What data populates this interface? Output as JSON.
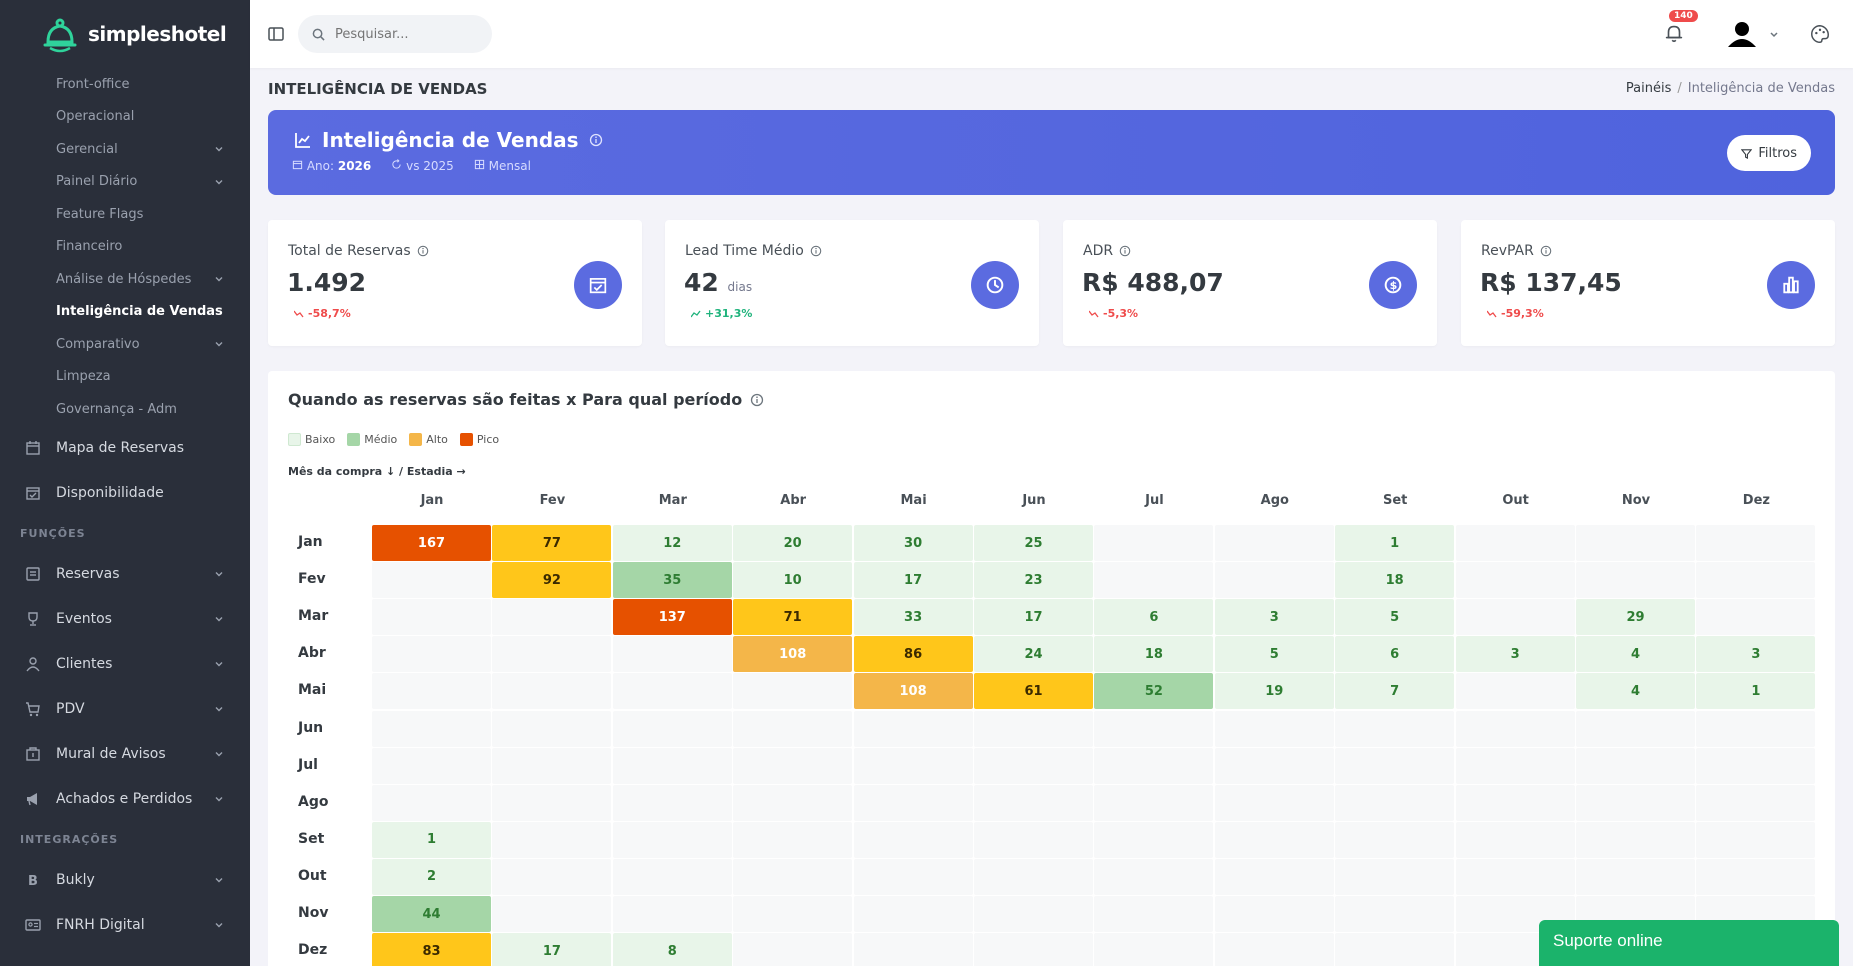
{
  "brand": {
    "name": "simpleshotel"
  },
  "sidebar": {
    "sub_items": [
      {
        "label": "Front-office",
        "chevron": false,
        "active": false
      },
      {
        "label": "Operacional",
        "chevron": false,
        "active": false
      },
      {
        "label": "Gerencial",
        "chevron": true,
        "active": false
      },
      {
        "label": "Painel Diário",
        "chevron": true,
        "active": false
      },
      {
        "label": "Feature Flags",
        "chevron": false,
        "active": false
      },
      {
        "label": "Financeiro",
        "chevron": false,
        "active": false
      },
      {
        "label": "Análise de Hóspedes",
        "chevron": true,
        "active": false
      },
      {
        "label": "Inteligência de Vendas",
        "chevron": false,
        "active": true
      },
      {
        "label": "Comparativo",
        "chevron": true,
        "active": false
      },
      {
        "label": "Limpeza",
        "chevron": false,
        "active": false
      },
      {
        "label": "Governança - Adm",
        "chevron": false,
        "active": false
      }
    ],
    "top_items": [
      {
        "label": "Mapa de Reservas",
        "icon": "calendar-grid-icon"
      },
      {
        "label": "Disponibilidade",
        "icon": "calendar-check-icon"
      }
    ],
    "section_funcoes": "FUNÇÕES",
    "funcoes_items": [
      {
        "label": "Reservas",
        "icon": "book-icon"
      },
      {
        "label": "Eventos",
        "icon": "trophy-icon"
      },
      {
        "label": "Clientes",
        "icon": "user-icon"
      },
      {
        "label": "PDV",
        "icon": "cart-icon"
      },
      {
        "label": "Mural de Avisos",
        "icon": "building-icon"
      },
      {
        "label": "Achados e Perdidos",
        "icon": "megaphone-icon"
      }
    ],
    "section_integracoes": "INTEGRAÇÕES",
    "integracoes_items": [
      {
        "label": "Bukly",
        "icon": "bold-b-icon"
      },
      {
        "label": "FNRH Digital",
        "icon": "id-card-icon"
      }
    ]
  },
  "topbar": {
    "search_placeholder": "Pesquisar...",
    "notification_count": "140"
  },
  "page": {
    "title": "INTELIGÊNCIA DE VENDAS",
    "breadcrumb_root": "Painéis",
    "breadcrumb_sep": "/",
    "breadcrumb_current": "Inteligência de Vendas"
  },
  "banner": {
    "title": "Inteligência de Vendas",
    "year_label": "Ano:",
    "year_value": "2026",
    "compare": "vs 2025",
    "period": "Mensal",
    "filters_label": "Filtros"
  },
  "kpis": [
    {
      "label": "Total de Reservas",
      "value": "1.492",
      "unit": "",
      "delta": "-58,7%",
      "trend": "neg",
      "icon": "calendar-check-icon"
    },
    {
      "label": "Lead Time Médio",
      "value": "42",
      "unit": "dias",
      "delta": "+31,3%",
      "trend": "pos",
      "icon": "clock-icon"
    },
    {
      "label": "ADR",
      "value": "R$ 488,07",
      "unit": "",
      "delta": "-5,3%",
      "trend": "neg",
      "icon": "dollar-circle-icon"
    },
    {
      "label": "RevPAR",
      "value": "R$ 137,45",
      "unit": "",
      "delta": "-59,3%",
      "trend": "neg",
      "icon": "bar-chart-icon"
    }
  ],
  "heatmap": {
    "title": "Quando as reservas são feitas x Para qual período",
    "legend": [
      {
        "label": "Baixo",
        "color": "#e8f5e9"
      },
      {
        "label": "Médio",
        "color": "#a5d6a7"
      },
      {
        "label": "Alto",
        "color": "#f4b649"
      },
      {
        "label": "Pico",
        "color": "#e65100"
      }
    ],
    "axis_note": "Mês da compra ↓ / Estadia →",
    "colors": {
      "empty": "#f7f8f9",
      "baixo": "#e8f5e9",
      "medio": "#a5d6a7",
      "alto": "#f4b649",
      "alto2": "#ffc61a",
      "pico": "#e65100",
      "green_text": "#2e7d32",
      "dark_text": "#3b2a00"
    }
  },
  "chart_data": {
    "type": "heatmap",
    "title": "Quando as reservas são feitas x Para qual período",
    "xlabel": "Estadia",
    "ylabel": "Mês da compra",
    "x": [
      "Jan",
      "Fev",
      "Mar",
      "Abr",
      "Mai",
      "Jun",
      "Jul",
      "Ago",
      "Set",
      "Out",
      "Nov",
      "Dez"
    ],
    "y": [
      "Jan",
      "Fev",
      "Mar",
      "Abr",
      "Mai",
      "Jun",
      "Jul",
      "Ago",
      "Set",
      "Out",
      "Nov",
      "Dez"
    ],
    "values": [
      [
        167,
        77,
        12,
        20,
        30,
        25,
        null,
        null,
        1,
        null,
        null,
        null
      ],
      [
        null,
        92,
        35,
        10,
        17,
        23,
        null,
        null,
        18,
        null,
        null,
        null
      ],
      [
        null,
        null,
        137,
        71,
        33,
        17,
        6,
        3,
        5,
        null,
        29,
        null
      ],
      [
        null,
        null,
        null,
        108,
        86,
        24,
        18,
        5,
        6,
        3,
        4,
        3
      ],
      [
        null,
        null,
        null,
        null,
        108,
        61,
        52,
        19,
        7,
        null,
        4,
        1
      ],
      [
        null,
        null,
        null,
        null,
        null,
        null,
        null,
        null,
        null,
        null,
        null,
        null
      ],
      [
        null,
        null,
        null,
        null,
        null,
        null,
        null,
        null,
        null,
        null,
        null,
        null
      ],
      [
        null,
        null,
        null,
        null,
        null,
        null,
        null,
        null,
        null,
        null,
        null,
        null
      ],
      [
        1,
        null,
        null,
        null,
        null,
        null,
        null,
        null,
        null,
        null,
        null,
        null
      ],
      [
        2,
        null,
        null,
        null,
        null,
        null,
        null,
        null,
        null,
        null,
        null,
        null
      ],
      [
        44,
        null,
        null,
        null,
        null,
        null,
        null,
        null,
        null,
        null,
        null,
        null
      ],
      [
        83,
        17,
        8,
        null,
        null,
        null,
        null,
        null,
        null,
        null,
        null,
        null
      ]
    ],
    "legend": [
      "Baixo",
      "Médio",
      "Alto",
      "Pico"
    ]
  },
  "support": {
    "label": "Suporte online"
  }
}
